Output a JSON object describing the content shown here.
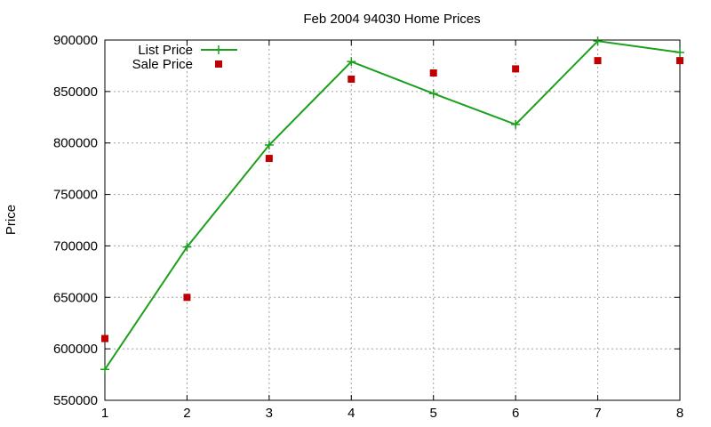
{
  "chart_data": {
    "type": "line",
    "title": "Feb 2004 94030 Home Prices",
    "xlabel": "",
    "ylabel": "Price",
    "x": [
      1,
      2,
      3,
      4,
      5,
      6,
      7,
      8
    ],
    "xlim": [
      1,
      8
    ],
    "ylim": [
      550000,
      900000
    ],
    "xticks": [
      "1",
      "2",
      "3",
      "4",
      "5",
      "6",
      "7",
      "8"
    ],
    "yticks": [
      "550000",
      "600000",
      "650000",
      "700000",
      "750000",
      "800000",
      "850000",
      "900000"
    ],
    "grid": true,
    "legend_position": "top-left",
    "series": [
      {
        "name": "List Price",
        "style": "linespoints",
        "marker": "plus",
        "color": "#1aa01a",
        "values": [
          580000,
          699000,
          798000,
          879000,
          848000,
          818000,
          899000,
          888000
        ]
      },
      {
        "name": "Sale Price",
        "style": "points",
        "marker": "square",
        "color": "#c00000",
        "values": [
          610000,
          650000,
          785000,
          862000,
          868000,
          872000,
          880000,
          880000
        ]
      }
    ]
  }
}
